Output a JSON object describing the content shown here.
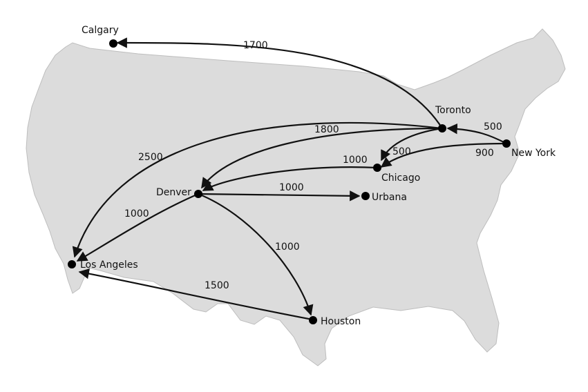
{
  "colors": {
    "land": "#dcdcdc",
    "land_stroke": "#bdbdbd",
    "route": "#111111",
    "city": "#000000",
    "background": "#ffffff"
  },
  "cities": [
    {
      "id": "calgary",
      "name": "Calgary"
    },
    {
      "id": "toronto",
      "name": "Toronto"
    },
    {
      "id": "new-york",
      "name": "New York"
    },
    {
      "id": "chicago",
      "name": "Chicago"
    },
    {
      "id": "denver",
      "name": "Denver"
    },
    {
      "id": "urbana",
      "name": "Urbana"
    },
    {
      "id": "los-angeles",
      "name": "Los Angeles"
    },
    {
      "id": "houston",
      "name": "Houston"
    }
  ],
  "routes": [
    {
      "id": "toronto-calgary",
      "from": "Toronto",
      "to": "Calgary",
      "cost": "1700"
    },
    {
      "id": "newyork-toronto",
      "from": "New York",
      "to": "Toronto",
      "cost": "500"
    },
    {
      "id": "newyork-chicago",
      "from": "New York",
      "to": "Chicago",
      "cost": "900"
    },
    {
      "id": "toronto-chicago",
      "from": "Toronto",
      "to": "Chicago",
      "cost": "500"
    },
    {
      "id": "toronto-denver",
      "from": "Toronto",
      "to": "Denver",
      "cost": "1800"
    },
    {
      "id": "toronto-losangeles",
      "from": "Toronto",
      "to": "Los Angeles",
      "cost": "2500"
    },
    {
      "id": "chicago-denver",
      "from": "Chicago",
      "to": "Denver",
      "cost": "1000"
    },
    {
      "id": "denver-urbana",
      "from": "Denver",
      "to": "Urbana",
      "cost": "1000"
    },
    {
      "id": "denver-losangeles",
      "from": "Denver",
      "to": "Los Angeles",
      "cost": "1000"
    },
    {
      "id": "denver-houston",
      "from": "Denver",
      "to": "Houston",
      "cost": "1000"
    },
    {
      "id": "houston-losangeles",
      "from": "Houston",
      "to": "Los Angeles",
      "cost": "1500"
    }
  ]
}
